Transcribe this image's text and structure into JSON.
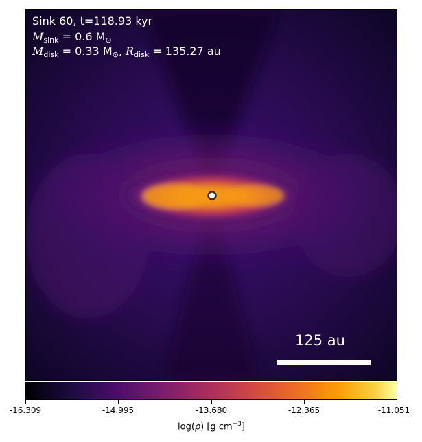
{
  "annotation": {
    "line1": "Sink 60, t=118.93 kyr",
    "msink_symbol": "M",
    "msink_sub": "sink",
    "msink_value": " = 0.6 M",
    "mdisk_symbol": "M",
    "mdisk_sub": "disk",
    "mdisk_value": " = 0.33 M",
    "rdisk_symbol": "R",
    "rdisk_sub": "disk",
    "rdisk_value": " = 135.27 au"
  },
  "scalebar": {
    "label": "125 au"
  },
  "chart_data": {
    "type": "heatmap",
    "title": "",
    "colormap": "inferno",
    "colorbar": {
      "label_prefix": "log(",
      "label_rho": "ρ",
      "label_suffix": ") [g cm",
      "label_exp": "−3",
      "label_close": "]",
      "range": [
        -16.309,
        -11.051
      ],
      "ticks": [
        "-16.309",
        "-14.995",
        "-13.680",
        "-12.365",
        "-11.051"
      ]
    },
    "features": {
      "disk_peak_log_rho": -12.6,
      "background_log_rho": -15.3,
      "sink_marker": "center"
    }
  }
}
